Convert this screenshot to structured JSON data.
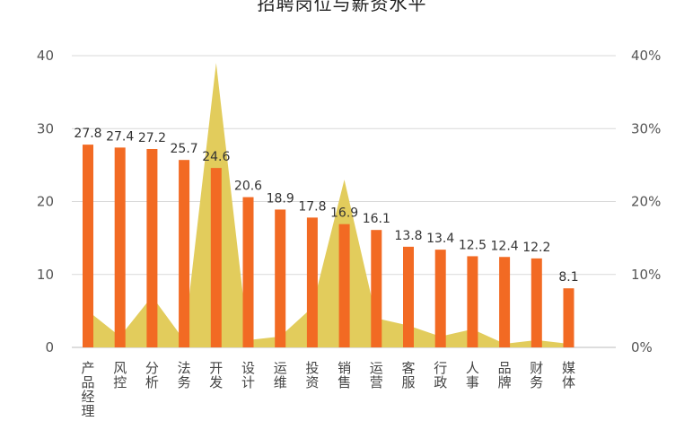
{
  "chart_data": {
    "type": "bar",
    "title": "招聘岗位与薪资水平",
    "categories": [
      "产品经理",
      "风控",
      "分析",
      "法务",
      "开发",
      "设计",
      "运维",
      "投资",
      "销售",
      "运营",
      "客服",
      "行政",
      "人事",
      "品牌",
      "财务",
      "媒体"
    ],
    "series": [
      {
        "type": "bar",
        "axis": "left",
        "values": [
          27.8,
          27.4,
          27.2,
          25.7,
          24.6,
          20.6,
          18.9,
          17.8,
          16.9,
          16.1,
          13.8,
          13.4,
          12.5,
          12.4,
          12.2,
          8.1
        ]
      },
      {
        "type": "area",
        "axis": "right",
        "values": [
          5.0,
          1.5,
          7.0,
          1.0,
          39.0,
          1.0,
          1.5,
          5.5,
          23.0,
          4.0,
          3.0,
          1.5,
          2.5,
          0.5,
          1.0,
          0.5
        ]
      }
    ],
    "y_left": {
      "ticks": [
        "0",
        "10",
        "20",
        "30",
        "40"
      ],
      "min": 0,
      "max": 40
    },
    "y_right": {
      "ticks": [
        "0%",
        "10%",
        "20%",
        "30%",
        "40%"
      ],
      "min": 0,
      "max": 40
    },
    "grid": true,
    "colors": {
      "bar": "#F26A23",
      "area": "#E2CC5C",
      "grid": "#d9d9d9",
      "axis": "#bbbbbb"
    }
  }
}
